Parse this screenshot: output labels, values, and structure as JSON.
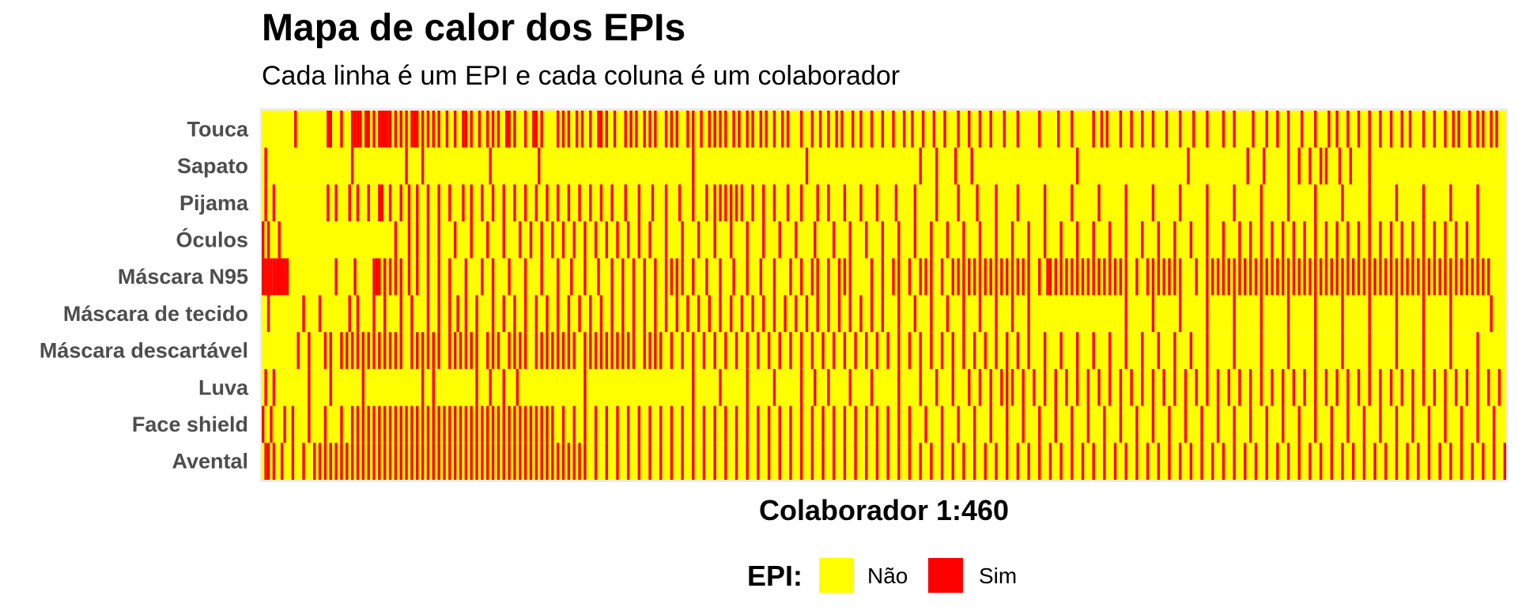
{
  "chart_data": {
    "type": "heatmap",
    "title": "Mapa de calor dos EPIs",
    "subtitle": "Cada linha é um EPI e cada coluna é um colaborador",
    "xlabel": "Colaborador 1:460",
    "ylabel": "",
    "rows": [
      "Touca",
      "Sapato",
      "Pijama",
      "Óculos",
      "Máscara N95",
      "Máscara de tecido",
      "Máscara descartável",
      "Luva",
      "Face shield",
      "Avental"
    ],
    "n_columns": 460,
    "column_range": [
      1,
      460
    ],
    "levels": [
      "Não",
      "Sim"
    ],
    "colors": {
      "Não": "#ffff00",
      "Sim": "#ff0000"
    },
    "legend": {
      "title": "EPI:",
      "position": "bottom",
      "entries": [
        "Não",
        "Sim"
      ]
    },
    "grid": false,
    "sim_columns": {
      "Touca": [
        13,
        25,
        26,
        30,
        34,
        35,
        36,
        37,
        39,
        40,
        42,
        44,
        45,
        46,
        47,
        48,
        50,
        52,
        54,
        56,
        57,
        58,
        60,
        62,
        64,
        66,
        69,
        72,
        75,
        76,
        78,
        81,
        84,
        86,
        88,
        91,
        92,
        94,
        98,
        101,
        102,
        104,
        110,
        112,
        114,
        117,
        119,
        122,
        125,
        126,
        128,
        131,
        135,
        137,
        139,
        142,
        144,
        146,
        150,
        152,
        154,
        158,
        160,
        163,
        166,
        168,
        170,
        172,
        175,
        177,
        180,
        182,
        185,
        187,
        190,
        193,
        195,
        200,
        204,
        207,
        210,
        213,
        215,
        219,
        222,
        226,
        230,
        234,
        238,
        241,
        245,
        249,
        253,
        258,
        262,
        266,
        270,
        275,
        280,
        288,
        295,
        300,
        308,
        311,
        313,
        318,
        322,
        326,
        330,
        335,
        340,
        345,
        350,
        356,
        360,
        367,
        372,
        376,
        380,
        385,
        390,
        395,
        398,
        402,
        406,
        410,
        414,
        418,
        422,
        425,
        430,
        434,
        438,
        441,
        443,
        447,
        450,
        452,
        455,
        457
      ],
      "Sapato": [
        2,
        34,
        54,
        60,
        85,
        103,
        160,
        202,
        244,
        250,
        257,
        263,
        302,
        343,
        365,
        371,
        380,
        384,
        388,
        392,
        394,
        399,
        403,
        410
      ],
      "Pijama": [
        2,
        5,
        25,
        28,
        33,
        36,
        40,
        44,
        45,
        48,
        52,
        55,
        58,
        62,
        66,
        70,
        75,
        78,
        82,
        86,
        90,
        94,
        98,
        102,
        106,
        110,
        114,
        118,
        122,
        126,
        130,
        135,
        140,
        145,
        150,
        155,
        160,
        165,
        168,
        170,
        172,
        174,
        176,
        178,
        182,
        186,
        190,
        195,
        200,
        206,
        210,
        216,
        222,
        228,
        235,
        242,
        250,
        258,
        265,
        272,
        280,
        290,
        300,
        310,
        320,
        330,
        340,
        350,
        360,
        370,
        380,
        390,
        400,
        410,
        420,
        430,
        440,
        450
      ],
      "Óculos": [
        1,
        3,
        7,
        50,
        55,
        58,
        62,
        66,
        72,
        78,
        84,
        90,
        96,
        100,
        104,
        108,
        112,
        116,
        120,
        124,
        128,
        132,
        136,
        140,
        144,
        150,
        156,
        162,
        168,
        174,
        180,
        186,
        192,
        198,
        205,
        212,
        218,
        224,
        230,
        236,
        242,
        248,
        254,
        260,
        266,
        272,
        278,
        284,
        290,
        296,
        302,
        308,
        314,
        320,
        326,
        332,
        338,
        344,
        350,
        356,
        362,
        366,
        370,
        374,
        378,
        382,
        386,
        390,
        394,
        398,
        402,
        406,
        410,
        414,
        418,
        422,
        426,
        430,
        434,
        438,
        442,
        446,
        450
      ],
      "Máscara N95": [
        1,
        2,
        3,
        4,
        5,
        6,
        7,
        8,
        9,
        10,
        28,
        35,
        42,
        43,
        44,
        46,
        48,
        50,
        52,
        55,
        58,
        62,
        66,
        70,
        76,
        82,
        86,
        92,
        98,
        104,
        110,
        115,
        120,
        125,
        130,
        134,
        138,
        142,
        146,
        150,
        152,
        154,
        156,
        160,
        165,
        170,
        175,
        180,
        185,
        190,
        196,
        200,
        204,
        206,
        210,
        214,
        216,
        218,
        226,
        230,
        234,
        236,
        240,
        244,
        246,
        248,
        252,
        256,
        258,
        260,
        262,
        264,
        266,
        268,
        270,
        272,
        274,
        276,
        278,
        280,
        282,
        284,
        288,
        291,
        292,
        294,
        296,
        298,
        300,
        302,
        304,
        306,
        308,
        310,
        312,
        314,
        316,
        318,
        320,
        324,
        328,
        330,
        332,
        334,
        336,
        338,
        340,
        346,
        350,
        352,
        354,
        356,
        358,
        360,
        362,
        364,
        366,
        368,
        370,
        372,
        374,
        376,
        378,
        380,
        382,
        384,
        386,
        388,
        390,
        392,
        394,
        396,
        398,
        400,
        402,
        404,
        406,
        408,
        410,
        412,
        414,
        416,
        418,
        420,
        422,
        424,
        426,
        428,
        430,
        432,
        434,
        436,
        438,
        440,
        442,
        444,
        446,
        448,
        450,
        452,
        454
      ],
      "Máscara de tecido": [
        3,
        16,
        22,
        33,
        36,
        42,
        46,
        52,
        56,
        62,
        66,
        70,
        73,
        76,
        80,
        86,
        90,
        94,
        98,
        102,
        106,
        110,
        114,
        118,
        122,
        126,
        130,
        134,
        138,
        142,
        146,
        150,
        154,
        158,
        162,
        166,
        170,
        174,
        178,
        182,
        186,
        190,
        194,
        198,
        202,
        206,
        210,
        214,
        218,
        222,
        226,
        230,
        236,
        242,
        248,
        254,
        260,
        266,
        272,
        278,
        284,
        320,
        330,
        340,
        350,
        360,
        370,
        380,
        390,
        400,
        410,
        420,
        430,
        440,
        455
      ],
      "Máscara descartável": [
        14,
        18,
        24,
        26,
        30,
        32,
        34,
        36,
        38,
        40,
        42,
        44,
        46,
        48,
        50,
        52,
        56,
        58,
        60,
        62,
        64,
        66,
        70,
        72,
        74,
        76,
        78,
        80,
        84,
        86,
        88,
        92,
        94,
        96,
        98,
        102,
        104,
        106,
        108,
        110,
        112,
        114,
        116,
        120,
        122,
        124,
        126,
        128,
        130,
        132,
        134,
        136,
        138,
        142,
        144,
        146,
        148,
        152,
        156,
        160,
        164,
        168,
        172,
        176,
        180,
        184,
        188,
        192,
        196,
        200,
        204,
        208,
        212,
        216,
        220,
        224,
        228,
        232,
        236,
        240,
        244,
        248,
        252,
        256,
        260,
        264,
        268,
        272,
        276,
        280,
        284,
        290,
        296,
        302,
        308,
        314,
        320,
        326,
        332,
        338,
        344,
        350,
        360,
        370,
        380,
        390,
        400,
        410,
        420,
        430,
        440,
        450
      ],
      "Luva": [
        2,
        5,
        18,
        26,
        38,
        60,
        64,
        80,
        85,
        90,
        95,
        120,
        160,
        170,
        180,
        190,
        200,
        205,
        210,
        218,
        226,
        236,
        244,
        250,
        256,
        262,
        266,
        270,
        274,
        276,
        278,
        282,
        286,
        290,
        294,
        298,
        302,
        306,
        310,
        314,
        318,
        322,
        326,
        330,
        334,
        338,
        342,
        346,
        350,
        354,
        358,
        362,
        366,
        370,
        374,
        378,
        382,
        386,
        390,
        394,
        398,
        402,
        406,
        410,
        414,
        418,
        422,
        426,
        430,
        434,
        438,
        442,
        446,
        450,
        454,
        458
      ],
      "Face shield": [
        1,
        4,
        9,
        12,
        18,
        24,
        30,
        34,
        36,
        38,
        40,
        42,
        44,
        46,
        48,
        50,
        52,
        54,
        56,
        58,
        60,
        62,
        64,
        66,
        68,
        70,
        72,
        74,
        76,
        78,
        80,
        82,
        84,
        86,
        88,
        90,
        92,
        94,
        96,
        98,
        100,
        102,
        104,
        106,
        108,
        112,
        116,
        120,
        124,
        128,
        132,
        136,
        140,
        144,
        148,
        152,
        156,
        160,
        164,
        168,
        172,
        176,
        180,
        184,
        188,
        192,
        196,
        200,
        204,
        208,
        212,
        216,
        220,
        224,
        228,
        232,
        236,
        240,
        246,
        252,
        258,
        264,
        270,
        276,
        282,
        288,
        294,
        300,
        306,
        312,
        318,
        324,
        330,
        336,
        342,
        348,
        354,
        360,
        366,
        372,
        378,
        384,
        390,
        396,
        402,
        408,
        414,
        420,
        426,
        432,
        438,
        444,
        450,
        456
      ],
      "Avental": [
        2,
        3,
        5,
        8,
        12,
        16,
        20,
        22,
        24,
        26,
        28,
        30,
        32,
        34,
        36,
        38,
        40,
        42,
        44,
        46,
        48,
        50,
        52,
        54,
        56,
        58,
        60,
        62,
        64,
        66,
        68,
        70,
        72,
        74,
        76,
        78,
        80,
        82,
        84,
        86,
        88,
        90,
        92,
        94,
        96,
        98,
        100,
        102,
        104,
        106,
        108,
        110,
        112,
        114,
        116,
        118,
        120,
        124,
        128,
        132,
        136,
        140,
        144,
        148,
        152,
        156,
        160,
        164,
        168,
        172,
        176,
        180,
        184,
        188,
        192,
        196,
        200,
        204,
        208,
        212,
        216,
        220,
        224,
        228,
        232,
        236,
        240,
        244,
        248,
        252,
        256,
        260,
        264,
        268,
        272,
        276,
        280,
        284,
        288,
        292,
        296,
        300,
        304,
        308,
        312,
        316,
        320,
        324,
        328,
        332,
        336,
        340,
        344,
        348,
        352,
        356,
        360,
        364,
        368,
        372,
        376,
        380,
        384,
        388,
        392,
        396,
        400,
        404,
        408,
        412,
        416,
        420,
        424,
        428,
        432,
        436,
        440,
        444,
        448,
        452,
        456,
        460
      ]
    }
  }
}
